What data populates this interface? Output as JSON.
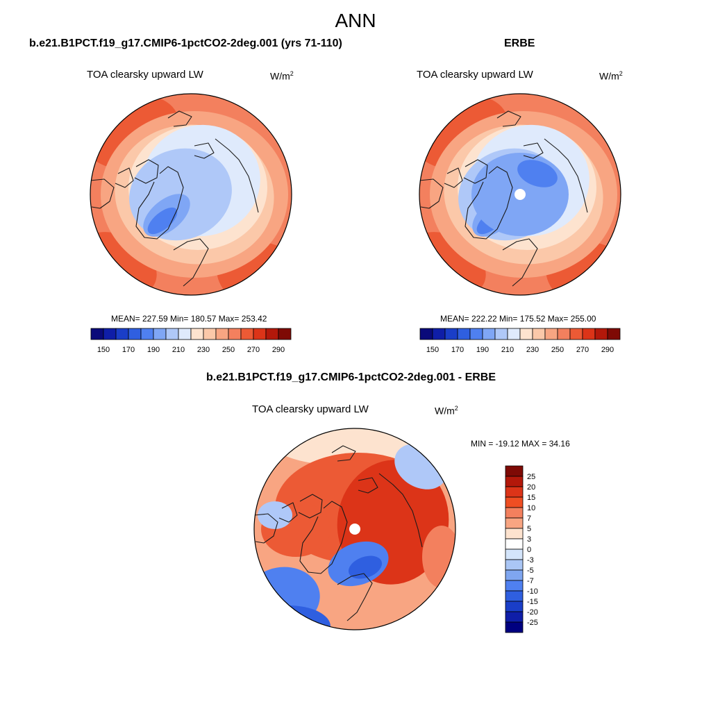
{
  "figure": {
    "title": "ANN"
  },
  "panels": [
    {
      "title": "b.e21.B1PCT.f19_g17.CMIP6-1pctCO2-2deg.001 (yrs 71-110)",
      "variable": "TOA clearsky upward LW",
      "units_base": "W/m",
      "units_exp": "2",
      "stats": "MEAN= 227.59  Min= 180.57  Max= 253.42"
    },
    {
      "title": "ERBE",
      "variable": "TOA clearsky upward LW",
      "units_base": "W/m",
      "units_exp": "2",
      "stats": "MEAN= 222.22  Min= 175.52  Max= 255.00"
    },
    {
      "title": "b.e21.B1PCT.f19_g17.CMIP6-1pctCO2-2deg.001 - ERBE",
      "variable": "TOA clearsky upward LW",
      "units_base": "W/m",
      "units_exp": "2",
      "stats": "MIN = -19.12 MAX =  34.16"
    }
  ],
  "colorbars": {
    "absolute": {
      "colors": [
        "#0a0a7a",
        "#0f1ea8",
        "#1a3ec8",
        "#2f5fe0",
        "#4f80f0",
        "#7fa6f5",
        "#afc8f8",
        "#dfeafc",
        "#fde3cf",
        "#fbc8a9",
        "#f8a582",
        "#f3805e",
        "#ec5a35",
        "#dc3418",
        "#b3180a",
        "#7e0a05"
      ],
      "tick_labels": [
        "150",
        "170",
        "190",
        "210",
        "230",
        "250",
        "270",
        "290"
      ]
    },
    "difference": {
      "colors": [
        "#7e0a05",
        "#b3180a",
        "#dc3418",
        "#ef4e22",
        "#f3805e",
        "#f8a582",
        "#fde3cf",
        "#ffffff",
        "#d4e5fb",
        "#aac6f5",
        "#7fa6f0",
        "#4f80f0",
        "#2f5fe0",
        "#1a3ec8",
        "#0f1ea8",
        "#000080"
      ],
      "tick_labels": [
        "25",
        "20",
        "15",
        "10",
        "7",
        "5",
        "3",
        "0",
        "-3",
        "-5",
        "-7",
        "-10",
        "-15",
        "-20",
        "-25"
      ]
    }
  },
  "map_colors": {
    "red_dark": "#dc3418",
    "red": "#ec5a35",
    "orange": "#f3805e",
    "salmon": "#f8a582",
    "peach": "#fbc8a9",
    "cream": "#fde3cf",
    "pale_blue": "#dfeafc",
    "light_blue": "#afc8f8",
    "blue": "#7fa6f5",
    "mid_blue": "#4f80f0",
    "deep_blue": "#2f5fe0",
    "coast": "#1a1a1a"
  }
}
